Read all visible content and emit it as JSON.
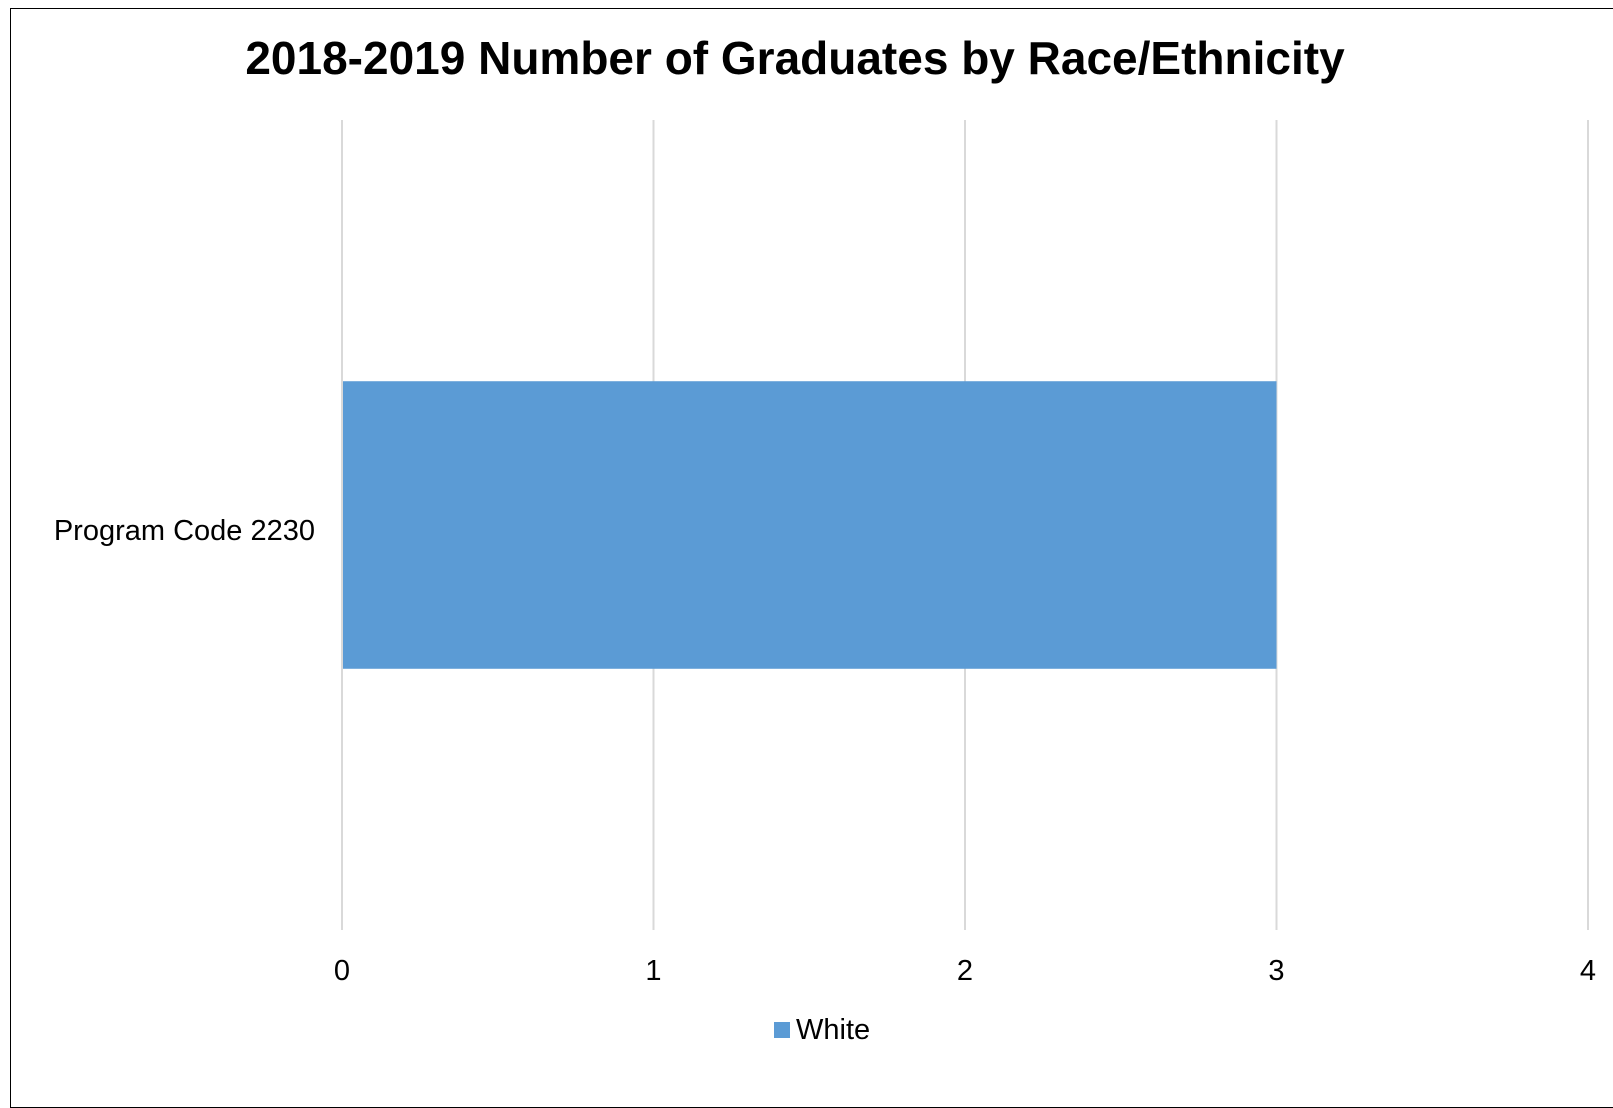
{
  "chart_data": {
    "type": "bar",
    "orientation": "horizontal",
    "title": "2018-2019 Number of Graduates by Race/Ethnicity",
    "categories": [
      "Program Code 2230"
    ],
    "series": [
      {
        "name": "White",
        "values": [
          3
        ],
        "color": "#5B9BD5"
      }
    ],
    "xlim": [
      0,
      4
    ],
    "xticks": [
      "0",
      "1",
      "2",
      "3",
      "4"
    ],
    "grid": "vertical",
    "legend_position": "bottom",
    "gridline_color": "#D9D9D9",
    "axis_color": "#D9D9D9"
  }
}
